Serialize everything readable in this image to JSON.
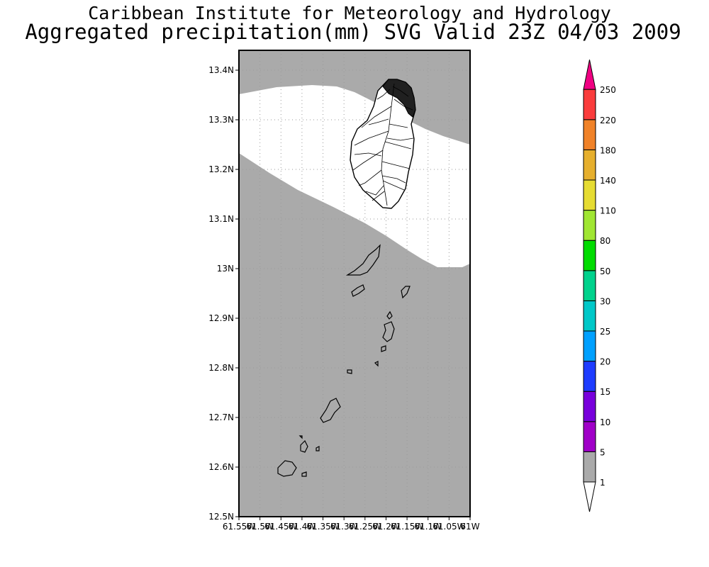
{
  "header": {
    "title": "Caribbean Institute for Meteorology and Hydrology",
    "subtitle": "Aggregated precipitation(mm) SVG Valid 23Z 04/03 2009"
  },
  "map": {
    "region": "St. Vincent and the Grenadines",
    "lat_range": [
      12.5,
      13.44
    ],
    "lon_range": [
      -61.55,
      -61.0
    ],
    "lat_ticks": [
      "13.4N",
      "13.3N",
      "13.2N",
      "13.1N",
      "13N",
      "12.9N",
      "12.8N",
      "12.7N",
      "12.6N",
      "12.5N"
    ],
    "lon_ticks": [
      "61.55W",
      "61.5W",
      "61.45W",
      "61.4W",
      "61.35W",
      "61.3W",
      "61.25W",
      "61.2W",
      "61.15W",
      "61.1W",
      "61.05W",
      "61W"
    ],
    "grid": true,
    "background_color": "#aaaaaa",
    "no_data_color": "#ffffff"
  },
  "legend": {
    "position": "right",
    "levels": [
      {
        "label": "1",
        "color": "#ffffff"
      },
      {
        "label": "5",
        "color": "#aaaaaa"
      },
      {
        "label": "10",
        "color": "#a000c8"
      },
      {
        "label": "15",
        "color": "#7800dc"
      },
      {
        "label": "20",
        "color": "#1e3cff"
      },
      {
        "label": "25",
        "color": "#00a0ff"
      },
      {
        "label": "30",
        "color": "#00c8c8"
      },
      {
        "label": "50",
        "color": "#00d28c"
      },
      {
        "label": "80",
        "color": "#00dc00"
      },
      {
        "label": "110",
        "color": "#a0e632"
      },
      {
        "label": "140",
        "color": "#e6dc32"
      },
      {
        "label": "180",
        "color": "#e6af2d"
      },
      {
        "label": "220",
        "color": "#f08228"
      },
      {
        "label": "250",
        "color": "#fa3c3c"
      }
    ],
    "top_color": "#f00082"
  }
}
